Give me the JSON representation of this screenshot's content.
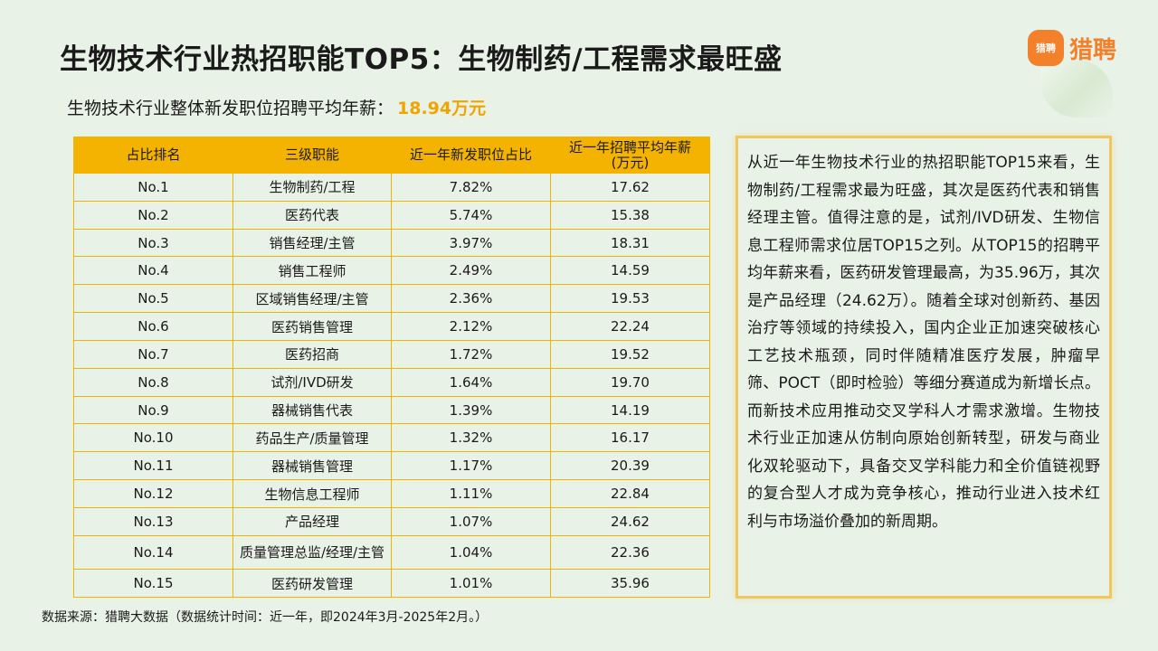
{
  "title": "生物技术行业热招职能TOP5：生物制药/工程需求最旺盛",
  "subtitle": {
    "label": "生物技术行业整体新发职位招聘平均年薪：",
    "value": "18.94万元"
  },
  "logo": {
    "badge_text": "猎聘",
    "text": "猎聘",
    "brand_color": "#f3802b"
  },
  "table": {
    "header_color": "#f5b301",
    "headers": [
      "占比排名",
      "三级职能",
      "近一年新发职位占比",
      "近一年招聘平均年薪\n(万元)"
    ],
    "rows": [
      [
        "No.1",
        "生物制药/工程",
        "7.82%",
        "17.62"
      ],
      [
        "No.2",
        "医药代表",
        "5.74%",
        "15.38"
      ],
      [
        "No.3",
        "销售经理/主管",
        "3.97%",
        "18.31"
      ],
      [
        "No.4",
        "销售工程师",
        "2.49%",
        "14.59"
      ],
      [
        "No.5",
        "区域销售经理/主管",
        "2.36%",
        "19.53"
      ],
      [
        "No.6",
        "医药销售管理",
        "2.12%",
        "22.24"
      ],
      [
        "No.7",
        "医药招商",
        "1.72%",
        "19.52"
      ],
      [
        "No.8",
        "试剂/IVD研发",
        "1.64%",
        "19.70"
      ],
      [
        "No.9",
        "器械销售代表",
        "1.39%",
        "14.19"
      ],
      [
        "No.10",
        "药品生产/质量管理",
        "1.32%",
        "16.17"
      ],
      [
        "No.11",
        "器械销售管理",
        "1.17%",
        "20.39"
      ],
      [
        "No.12",
        "生物信息工程师",
        "1.11%",
        "22.84"
      ],
      [
        "No.13",
        "产品经理",
        "1.07%",
        "24.62"
      ],
      [
        "No.14",
        "质量管理总监/经理/主管",
        "1.04%",
        "22.36"
      ],
      [
        "No.15",
        "医药研发管理",
        "1.01%",
        "35.96"
      ]
    ]
  },
  "summary": "从近一年生物技术行业的热招职能TOP15来看，生物制药/工程需求最为旺盛，其次是医药代表和销售经理主管。值得注意的是，试剂/IVD研发、生物信息工程师需求位居TOP15之列。从TOP15的招聘平均年薪来看，医药研发管理最高，为35.96万，其次是产品经理（24.62万）。随着全球对创新药、基因治疗等领域的持续投入，国内企业正加速突破核心工艺技术瓶颈，同时伴随精准医疗发展，肿瘤早筛、POCT（即时检验）等细分赛道成为新增长点。而新技术应用推动交叉学科人才需求激增。生物技术行业正加速从仿制向原始创新转型，研发与商业化双轮驱动下，具备交叉学科能力和全价值链视野的复合型人才成为竞争核心，推动行业进入技术红利与市场溢价叠加的新周期。",
  "source": "数据来源：猎聘大数据（数据统计时间：近一年，即2024年3月-2025年2月。）"
}
